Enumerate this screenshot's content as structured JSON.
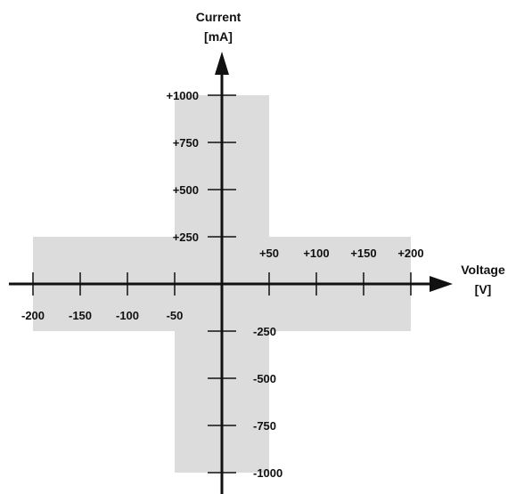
{
  "colors": {
    "background": "#ffffff",
    "region": "#dcdcdc",
    "axis": "#111111",
    "text": "#111111"
  },
  "chart_data": {
    "type": "area",
    "title": "",
    "xlabel": [
      "Voltage",
      "[V]"
    ],
    "ylabel": [
      "Current",
      "[mA]"
    ],
    "xlim": [
      -200,
      200
    ],
    "ylim": [
      -1000,
      1000
    ],
    "x_ticks": [
      -200,
      -150,
      -100,
      -50,
      50,
      100,
      150,
      200
    ],
    "y_ticks": [
      1000,
      750,
      500,
      250,
      -250,
      -500,
      -750,
      -1000
    ],
    "x_tick_labels_positive": [
      "+50",
      "+100",
      "+150",
      "+200"
    ],
    "x_tick_labels_negative": [
      "-200",
      "-150",
      "-100",
      "-50"
    ],
    "y_tick_labels_positive": [
      "+1000",
      "+750",
      "+500",
      "+250"
    ],
    "y_tick_labels_negative": [
      "-250",
      "-500",
      "-750",
      "-1000"
    ],
    "regions": [
      {
        "x_range": [
          -50,
          50
        ],
        "y_range": [
          -1000,
          1000
        ]
      },
      {
        "x_range": [
          -200,
          200
        ],
        "y_range": [
          -250,
          250
        ]
      }
    ],
    "grid": false
  }
}
